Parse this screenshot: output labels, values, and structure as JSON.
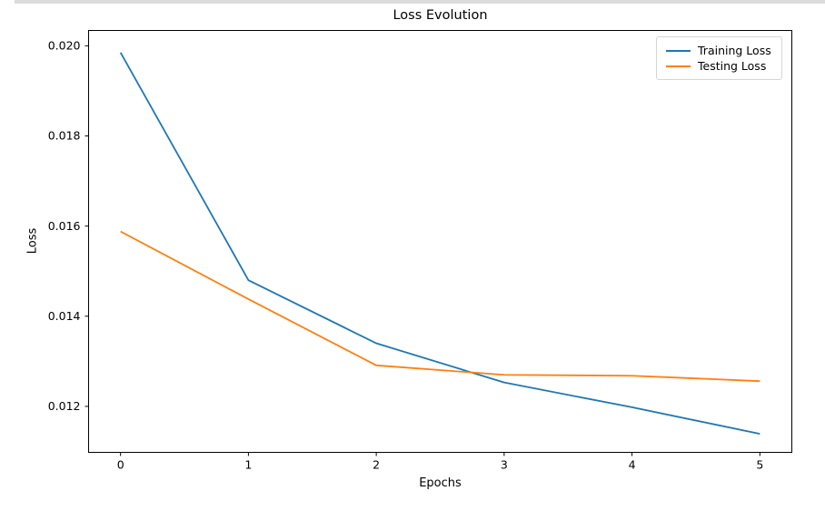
{
  "figure": {
    "top_strip_color": "#dcdcdc",
    "background_color": "#ffffff"
  },
  "chart_data": {
    "type": "line",
    "title": "Loss Evolution",
    "xlabel": "Epochs",
    "ylabel": "Loss",
    "x": [
      0,
      1,
      2,
      3,
      4,
      5
    ],
    "series": [
      {
        "name": "Training Loss",
        "color": "#1f77b4",
        "values": [
          0.01985,
          0.0148,
          0.0134,
          0.01253,
          0.01198,
          0.01139
        ]
      },
      {
        "name": "Testing Loss",
        "color": "#ff7f0e",
        "values": [
          0.01588,
          0.01438,
          0.01291,
          0.0127,
          0.01268,
          0.01256
        ]
      }
    ],
    "xticks": [
      0,
      1,
      2,
      3,
      4,
      5
    ],
    "xtick_labels": [
      "0",
      "1",
      "2",
      "3",
      "4",
      "5"
    ],
    "yticks": [
      0.012,
      0.014,
      0.016,
      0.018,
      0.02
    ],
    "ytick_labels": [
      "0.012",
      "0.014",
      "0.016",
      "0.018",
      "0.020"
    ],
    "xlim": [
      -0.25,
      5.25
    ],
    "ylim": [
      0.01098,
      0.02034
    ],
    "grid": false,
    "markers": false,
    "line_width": 1.8,
    "legend_position": "upper right",
    "axis_color": "#000000"
  }
}
